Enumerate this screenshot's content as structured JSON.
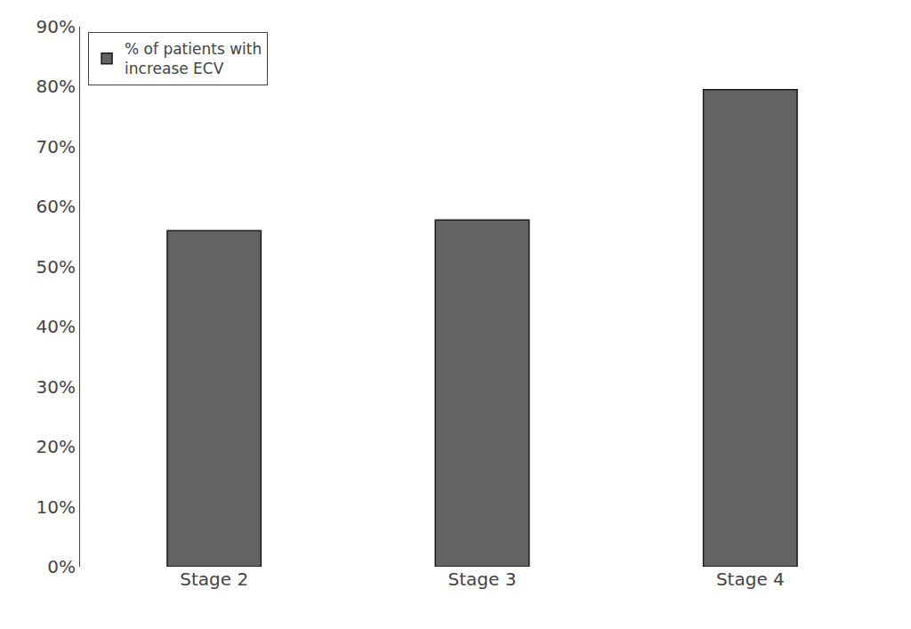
{
  "chart_data": {
    "type": "bar",
    "categories": [
      "Stage 2",
      "Stage 3",
      "Stage 4"
    ],
    "series": [
      {
        "name": "% of patients with\nincrease ECV",
        "color": "#636363",
        "values": [
          0.56,
          0.578,
          0.795
        ]
      }
    ],
    "ylim": [
      0,
      0.9
    ],
    "yticks": [
      {
        "value": 0,
        "label": "0%"
      },
      {
        "value": 0.1,
        "label": "10%"
      },
      {
        "value": 0.2,
        "label": "20%"
      },
      {
        "value": 0.3,
        "label": "30%"
      },
      {
        "value": 0.4,
        "label": "40%"
      },
      {
        "value": 0.5,
        "label": "50%"
      },
      {
        "value": 0.6,
        "label": "60%"
      },
      {
        "value": 0.7,
        "label": "70%"
      },
      {
        "value": 0.8,
        "label": "80%"
      },
      {
        "value": 0.9,
        "label": "90%"
      }
    ],
    "grid": false,
    "legend": "upper left"
  }
}
